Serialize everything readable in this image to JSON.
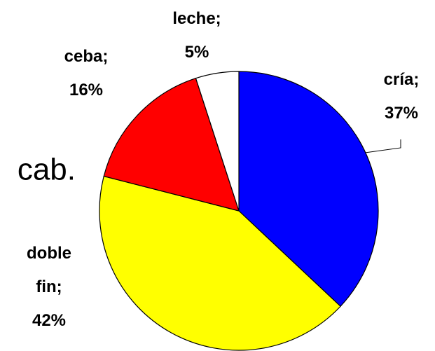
{
  "annotation": "cab.",
  "chart_data": {
    "type": "pie",
    "categories": [
      "cría;",
      "doble fin;",
      "ceba;",
      "leche;"
    ],
    "values": [
      37,
      42,
      16,
      5
    ],
    "value_labels": [
      "37%",
      "42%",
      "16%",
      "5%"
    ],
    "colors": [
      "#0000ff",
      "#ffff00",
      "#ff0000",
      "#ffffff"
    ]
  }
}
